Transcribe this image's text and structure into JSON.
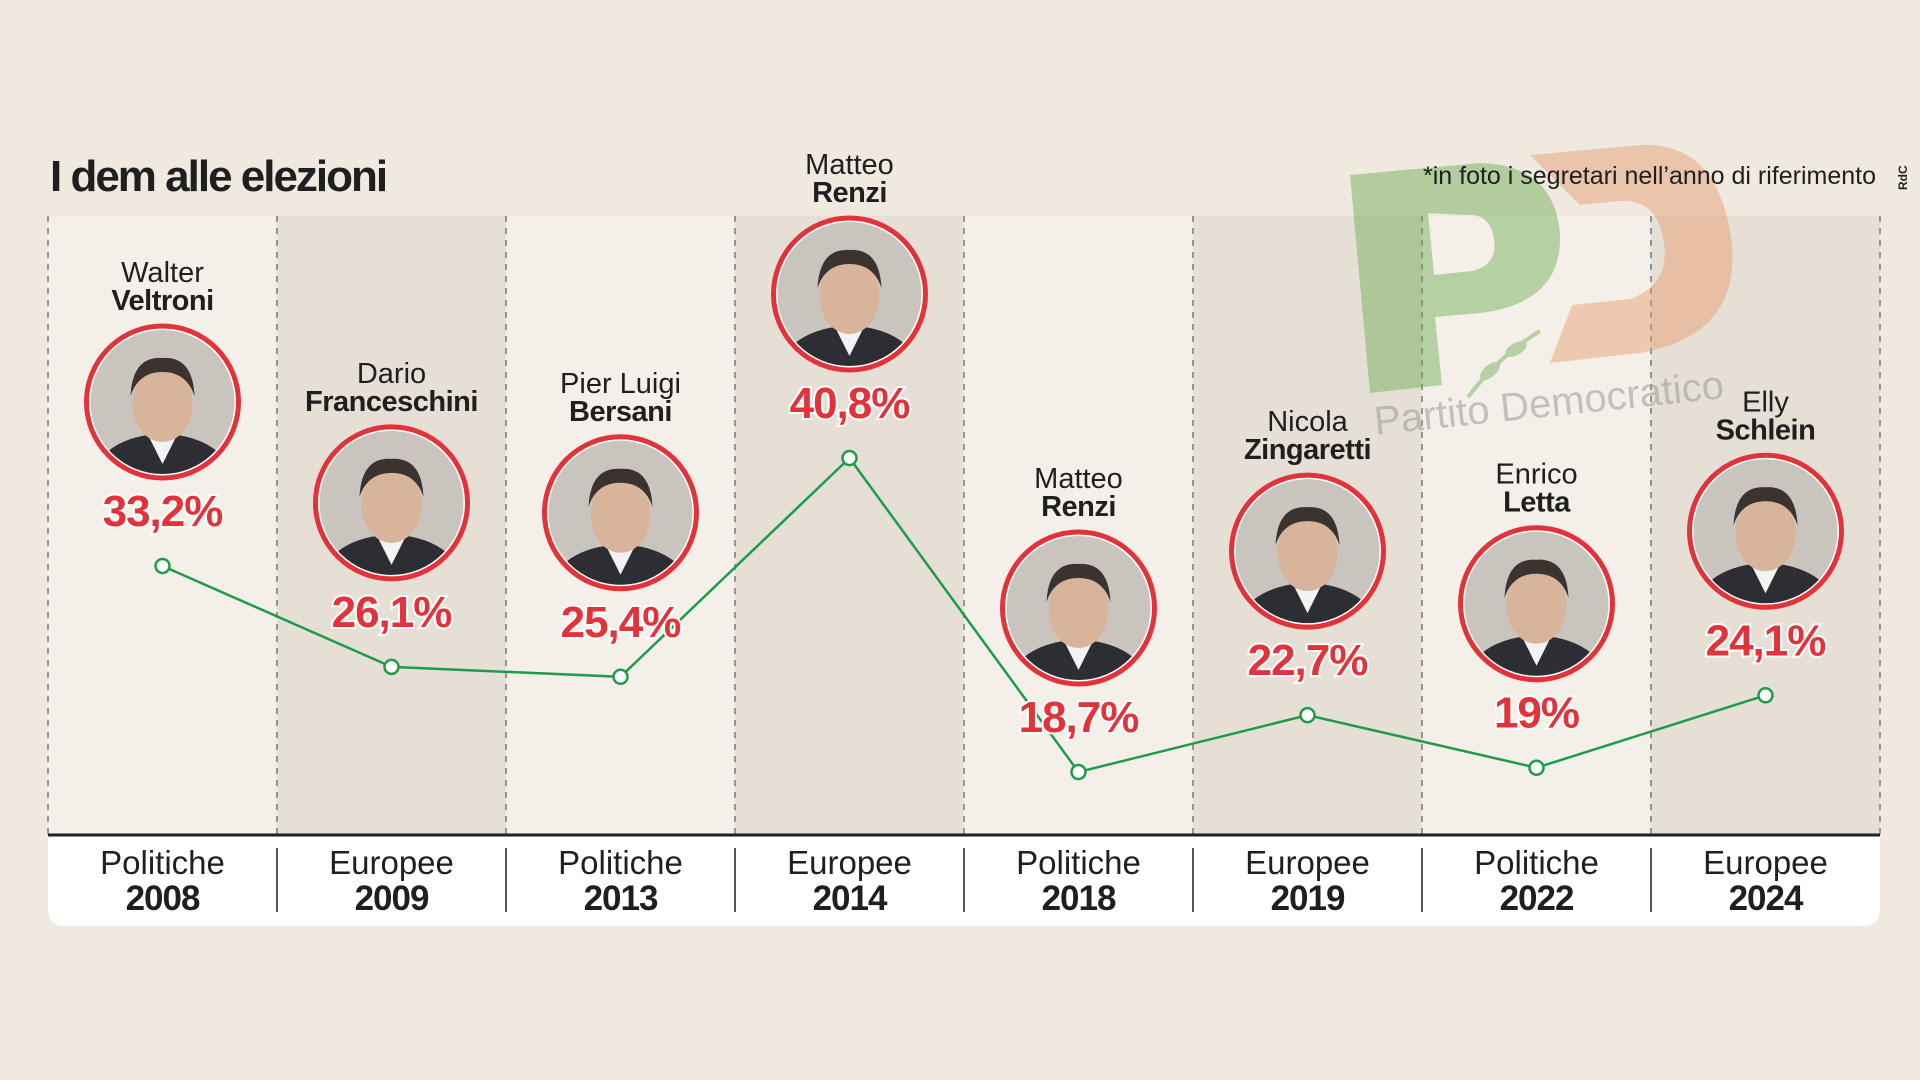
{
  "title": "I dem alle elezioni",
  "note": "*in foto i segretari nell’anno di riferimento",
  "credit": "RdC",
  "watermark": {
    "logo": "PD",
    "text": "Partito Democratico"
  },
  "colors": {
    "background": "#efe9e0",
    "line": "#1e9c4a",
    "value_label": "#e2323a",
    "portrait_ring": "#e2323a"
  },
  "chart_data": {
    "type": "line",
    "title": "I dem alle elezioni",
    "categories": [
      {
        "type": "Politiche",
        "year": "2008"
      },
      {
        "type": "Europee",
        "year": "2009"
      },
      {
        "type": "Politiche",
        "year": "2013"
      },
      {
        "type": "Europee",
        "year": "2014"
      },
      {
        "type": "Politiche",
        "year": "2018"
      },
      {
        "type": "Europee",
        "year": "2019"
      },
      {
        "type": "Politiche",
        "year": "2022"
      },
      {
        "type": "Europee",
        "year": "2024"
      }
    ],
    "values": [
      33.2,
      26.1,
      25.4,
      40.8,
      18.7,
      22.7,
      19,
      24.1
    ],
    "labels": [
      "33,2%",
      "26,1%",
      "25,4%",
      "40,8%",
      "18,7%",
      "22,7%",
      "19%",
      "24,1%"
    ],
    "leaders": [
      {
        "first": "Walter",
        "last": "Veltroni"
      },
      {
        "first": "Dario",
        "last": "Franceschini"
      },
      {
        "first": "Pier Luigi",
        "last": "Bersani"
      },
      {
        "first": "Matteo",
        "last": "Renzi"
      },
      {
        "first": "Matteo",
        "last": "Renzi"
      },
      {
        "first": "Nicola",
        "last": "Zingaretti"
      },
      {
        "first": "Enrico",
        "last": "Letta"
      },
      {
        "first": "Elly",
        "last": "Schlein"
      }
    ],
    "xlabel": "",
    "ylabel": "",
    "ylim": [
      15,
      45
    ],
    "grid": false,
    "legend": "none"
  }
}
